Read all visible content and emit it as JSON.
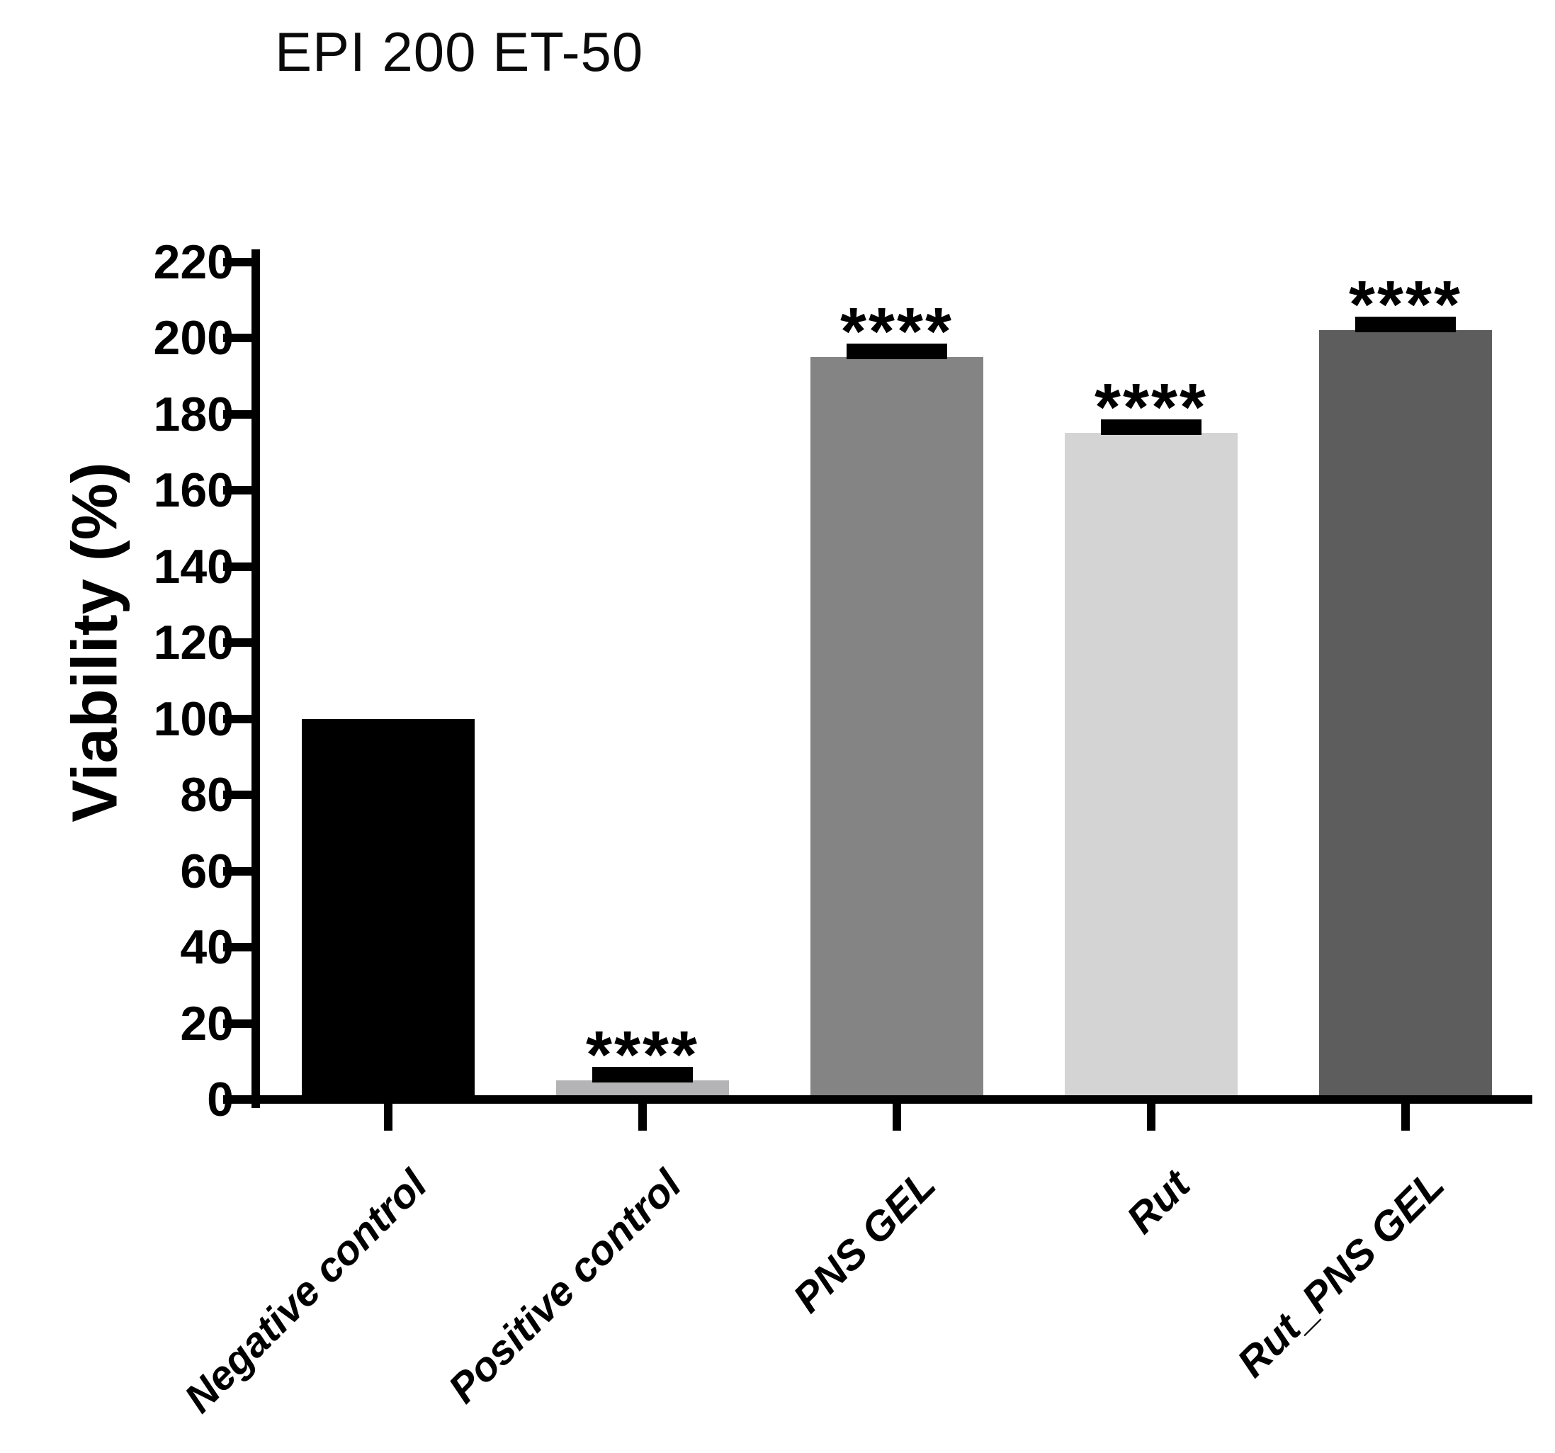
{
  "chart_data": {
    "type": "bar",
    "title": "EPI 200 ET-50",
    "ylabel": "Viability (%)",
    "xlabel": "",
    "categories": [
      "Negative control",
      "Positive control",
      "PNS GEL",
      "Rut",
      "Rut_PNS GEL"
    ],
    "values": [
      100,
      5,
      195,
      175,
      202
    ],
    "errors": [
      null,
      1.5,
      1.5,
      1.5,
      1.5
    ],
    "significance": [
      null,
      "****",
      "****",
      "****",
      "****"
    ],
    "bar_colors": [
      "#000000",
      "#b4b4b6",
      "#848484",
      "#d4d4d4",
      "#5d5d5d"
    ],
    "axis_color": "#000000",
    "background_color": "#ffffff",
    "ylim": [
      0,
      220
    ],
    "ytick_step": 20,
    "grid": false,
    "legend": null,
    "xtick_label_rotation_deg": 45,
    "error_bar_style": "cap-only"
  }
}
